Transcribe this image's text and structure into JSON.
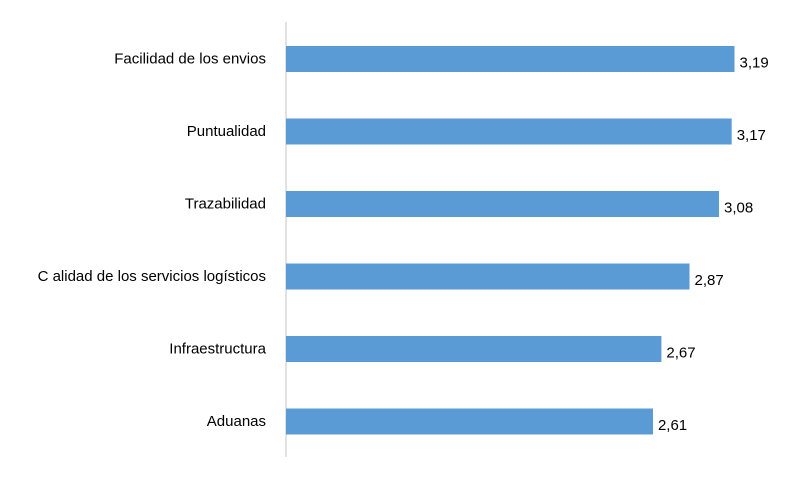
{
  "chart_data": {
    "type": "bar",
    "orientation": "horizontal",
    "categories": [
      "Facilidad de los envios",
      "Puntualidad",
      "Trazabilidad",
      "C alidad de los servicios logísticos",
      "Infraestructura",
      "Aduanas"
    ],
    "values": [
      3.19,
      3.17,
      3.08,
      2.87,
      2.67,
      2.61
    ],
    "value_labels": [
      "3,19",
      "3,17",
      "3,08",
      "2,87",
      "2,67",
      "2,61"
    ],
    "title": "",
    "xlabel": "",
    "ylabel": "",
    "xlim": [
      0,
      3.5
    ],
    "grid": false,
    "legend": "none",
    "bar_color": "#5b9bd5",
    "axis_color": "#d9d9d9"
  }
}
